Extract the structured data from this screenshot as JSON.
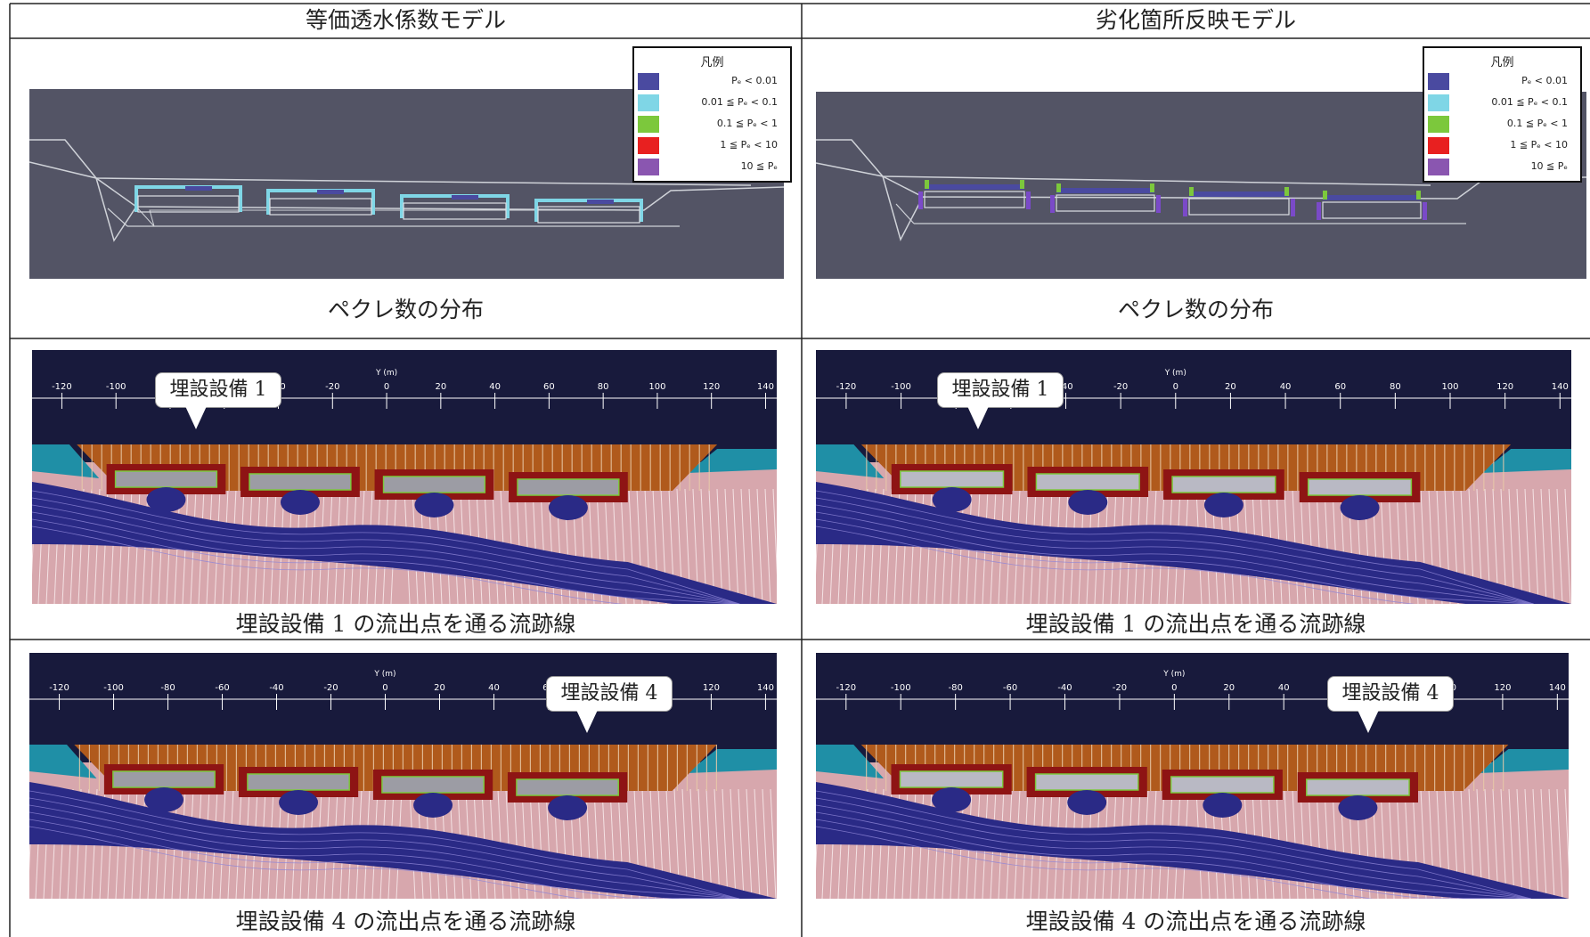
{
  "headers": {
    "left": "等価透水係数モデル",
    "right": "劣化箇所反映モデル"
  },
  "legend": {
    "title": "凡例",
    "items": [
      {
        "label": "Pₑ < 0.01",
        "color": "#4a4aa0"
      },
      {
        "label": "0.01 ≦ Pₑ < 0.1",
        "color": "#7fd6e6"
      },
      {
        "label": "0.1 ≦ Pₑ < 1",
        "color": "#7cc83c"
      },
      {
        "label": "1 ≦ Pₑ < 10",
        "color": "#e82020"
      },
      {
        "label": "10 ≦ Pₑ",
        "color": "#8a56b0"
      }
    ]
  },
  "captions": {
    "peclet": "ペクレ数の分布",
    "streamline1": "埋設設備 1 の流出点を通る流跡線",
    "streamline4": "埋設設備 4 の流出点を通る流跡線"
  },
  "callouts": {
    "facility1": "埋設設備 1",
    "facility4": "埋設設備 4"
  },
  "axis": {
    "label": "Y (m)",
    "ticks": [
      "-120",
      "-100",
      "-80",
      "-60",
      "-40",
      "-20",
      "0",
      "20",
      "40",
      "60",
      "80",
      "100",
      "120",
      "140"
    ]
  }
}
